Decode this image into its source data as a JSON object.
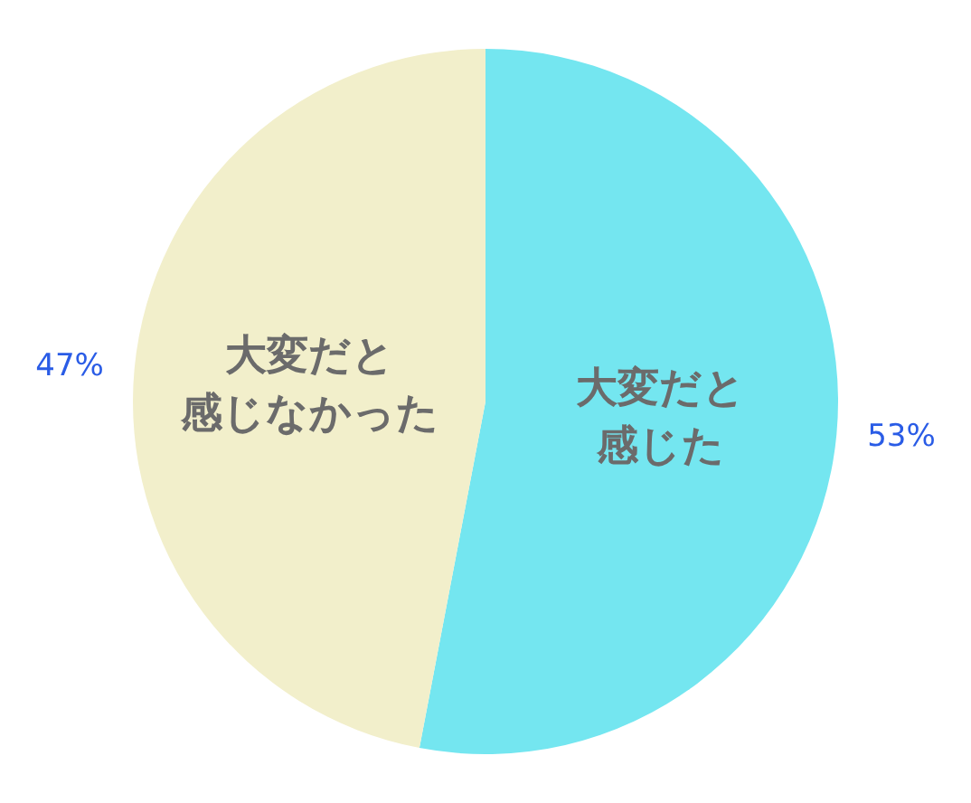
{
  "chart_data": {
    "type": "pie",
    "categories": [
      "大変だと感じた",
      "大変だと感じなかった"
    ],
    "values": [
      53,
      47
    ],
    "colors": [
      "#74e6f0",
      "#f2efcb"
    ],
    "value_labels": [
      "53%",
      "47%"
    ],
    "legend": false
  }
}
